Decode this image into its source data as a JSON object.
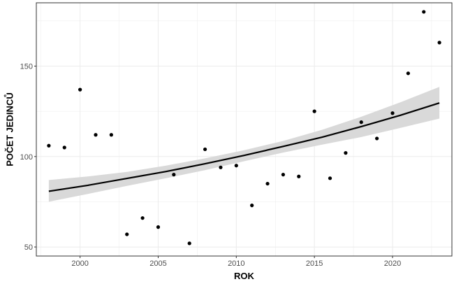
{
  "chart_data": {
    "type": "scatter",
    "xlabel": "ROK",
    "ylabel": "POČET JEDINCŮ",
    "xlim": [
      1997.2,
      2023.8
    ],
    "ylim": [
      45,
      185
    ],
    "x_ticks": [
      2000,
      2005,
      2010,
      2015,
      2020
    ],
    "y_ticks": [
      50,
      100,
      150
    ],
    "grid": true,
    "points": [
      {
        "x": 1998,
        "y": 106
      },
      {
        "x": 1999,
        "y": 105
      },
      {
        "x": 2000,
        "y": 137
      },
      {
        "x": 2001,
        "y": 112
      },
      {
        "x": 2002,
        "y": 112
      },
      {
        "x": 2003,
        "y": 57
      },
      {
        "x": 2004,
        "y": 66
      },
      {
        "x": 2005,
        "y": 61
      },
      {
        "x": 2006,
        "y": 90
      },
      {
        "x": 2007,
        "y": 52
      },
      {
        "x": 2008,
        "y": 104
      },
      {
        "x": 2009,
        "y": 94
      },
      {
        "x": 2010,
        "y": 95
      },
      {
        "x": 2011,
        "y": 73
      },
      {
        "x": 2012,
        "y": 85
      },
      {
        "x": 2013,
        "y": 90
      },
      {
        "x": 2014,
        "y": 89
      },
      {
        "x": 2015,
        "y": 125
      },
      {
        "x": 2016,
        "y": 88
      },
      {
        "x": 2017,
        "y": 102
      },
      {
        "x": 2018,
        "y": 119
      },
      {
        "x": 2019,
        "y": 110
      },
      {
        "x": 2020,
        "y": 124
      },
      {
        "x": 2021,
        "y": 146
      },
      {
        "x": 2022,
        "y": 180
      },
      {
        "x": 2023,
        "y": 163
      }
    ],
    "trend": {
      "x": [
        1998,
        2000.5,
        2003,
        2005.5,
        2008,
        2010.5,
        2013,
        2015.5,
        2018,
        2020.5,
        2023
      ],
      "y": [
        80.8,
        84.1,
        87.9,
        91.7,
        96.0,
        100.6,
        105.6,
        110.7,
        116.6,
        122.8,
        129.6
      ],
      "lower": [
        75.0,
        79.3,
        83.8,
        88.0,
        92.5,
        97.4,
        102.2,
        106.6,
        110.8,
        115.8,
        121.0
      ],
      "upper": [
        87.0,
        89.0,
        91.5,
        95.0,
        99.0,
        103.5,
        108.6,
        114.8,
        122.0,
        130.0,
        138.5
      ]
    },
    "colors": {
      "point": "#000000",
      "line": "#000000",
      "ribbon": "#d9d9d9",
      "grid": "#ebebeb",
      "panel_border": "#333333"
    }
  }
}
